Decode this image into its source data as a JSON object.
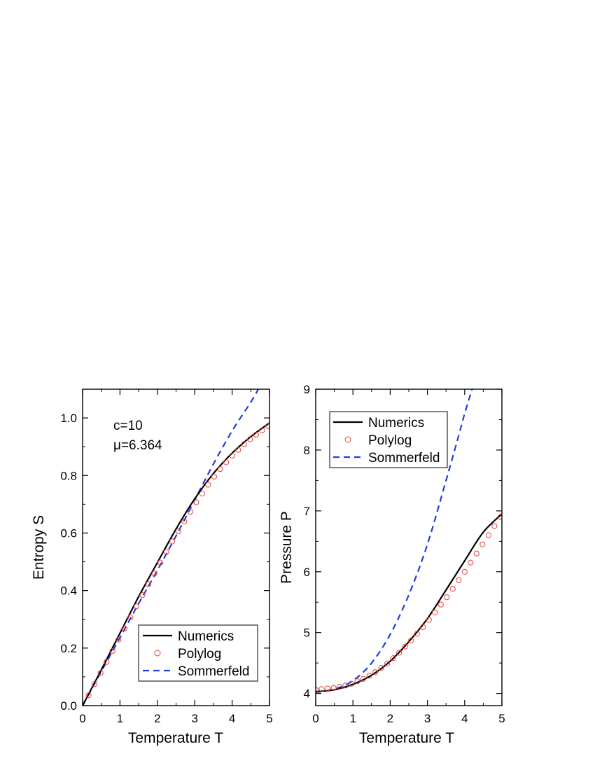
{
  "chart_data": [
    {
      "type": "line",
      "xlabel": "Temperature  T",
      "ylabel": "Entropy  S",
      "xlim": [
        0,
        5
      ],
      "ylim": [
        0,
        1.1
      ],
      "xticks": [
        "0",
        "1",
        "2",
        "3",
        "4",
        "5"
      ],
      "yticks": [
        "0.0",
        "0.2",
        "0.4",
        "0.6",
        "0.8",
        "1.0"
      ],
      "legend_position": "bottom-right",
      "annotations": [
        "c=10",
        "μ=6.364"
      ],
      "series": [
        {
          "name": "Numerics",
          "style": "solid",
          "color": "#000000",
          "x": [
            0,
            0.5,
            1.0,
            1.5,
            2.0,
            2.5,
            3.0,
            3.5,
            4.0,
            4.5,
            5.0
          ],
          "y": [
            0,
            0.124,
            0.252,
            0.379,
            0.497,
            0.614,
            0.719,
            0.807,
            0.878,
            0.935,
            0.983
          ]
        },
        {
          "name": "Polylog",
          "style": "circles",
          "color": "#e8403a",
          "x": [
            0.16,
            0.32,
            0.48,
            0.64,
            0.8,
            0.96,
            1.12,
            1.28,
            1.44,
            1.6,
            1.76,
            1.92,
            2.08,
            2.24,
            2.4,
            2.56,
            2.72,
            2.88,
            3.04,
            3.2,
            3.36,
            3.52,
            3.68,
            3.84,
            4.0,
            4.16,
            4.32,
            4.48,
            4.64,
            4.8,
            4.96
          ],
          "y": [
            0.036,
            0.075,
            0.113,
            0.152,
            0.19,
            0.229,
            0.268,
            0.307,
            0.345,
            0.384,
            0.422,
            0.459,
            0.497,
            0.534,
            0.571,
            0.606,
            0.64,
            0.674,
            0.707,
            0.737,
            0.768,
            0.796,
            0.822,
            0.846,
            0.869,
            0.889,
            0.909,
            0.926,
            0.942,
            0.957,
            0.972
          ]
        },
        {
          "name": "Sommerfeld",
          "style": "dashed",
          "color": "#1f3fdc",
          "x": [
            0,
            0.5,
            1.0,
            1.5,
            2.0,
            2.5,
            3.0,
            3.5,
            4.0,
            4.5,
            4.7
          ],
          "y": [
            0,
            0.119,
            0.236,
            0.355,
            0.47,
            0.59,
            0.715,
            0.84,
            0.955,
            1.055,
            1.1
          ]
        }
      ]
    },
    {
      "type": "line",
      "xlabel": "Temperature  T",
      "ylabel": "Pressure  P",
      "xlim": [
        0,
        5
      ],
      "ylim": [
        3.8,
        9
      ],
      "xticks": [
        "0",
        "1",
        "2",
        "3",
        "4",
        "5"
      ],
      "yticks": [
        "4",
        "5",
        "6",
        "7",
        "8",
        "9"
      ],
      "legend_position": "top-left",
      "series": [
        {
          "name": "Numerics",
          "style": "solid",
          "color": "#000000",
          "x": [
            0,
            0.5,
            1.0,
            1.5,
            2.0,
            2.5,
            3.0,
            3.5,
            4.0,
            4.5,
            5.0
          ],
          "y": [
            4.03,
            4.06,
            4.15,
            4.3,
            4.53,
            4.85,
            5.23,
            5.7,
            6.18,
            6.65,
            6.95
          ]
        },
        {
          "name": "Polylog",
          "style": "circles",
          "color": "#e8403a",
          "x": [
            0.0,
            0.16,
            0.32,
            0.48,
            0.64,
            0.8,
            0.96,
            1.12,
            1.28,
            1.44,
            1.6,
            1.76,
            1.92,
            2.08,
            2.24,
            2.4,
            2.56,
            2.72,
            2.88,
            3.04,
            3.2,
            3.36,
            3.52,
            3.68,
            3.84,
            4.0,
            4.16,
            4.32,
            4.48,
            4.64,
            4.8,
            4.96
          ],
          "y": [
            4.06,
            4.07,
            4.08,
            4.09,
            4.11,
            4.13,
            4.16,
            4.2,
            4.24,
            4.29,
            4.35,
            4.42,
            4.49,
            4.58,
            4.67,
            4.77,
            4.87,
            4.98,
            5.09,
            5.21,
            5.33,
            5.46,
            5.58,
            5.72,
            5.86,
            6.0,
            6.15,
            6.3,
            6.45,
            6.6,
            6.75,
            6.9
          ]
        },
        {
          "name": "Sommerfeld",
          "style": "dashed",
          "color": "#1f3fdc",
          "x": [
            0,
            0.5,
            1.0,
            1.5,
            2.0,
            2.5,
            3.0,
            3.5,
            3.8,
            4.0,
            4.2
          ],
          "y": [
            4.02,
            4.07,
            4.21,
            4.5,
            4.97,
            5.62,
            6.45,
            7.5,
            8.15,
            8.6,
            9.0
          ]
        }
      ]
    }
  ]
}
